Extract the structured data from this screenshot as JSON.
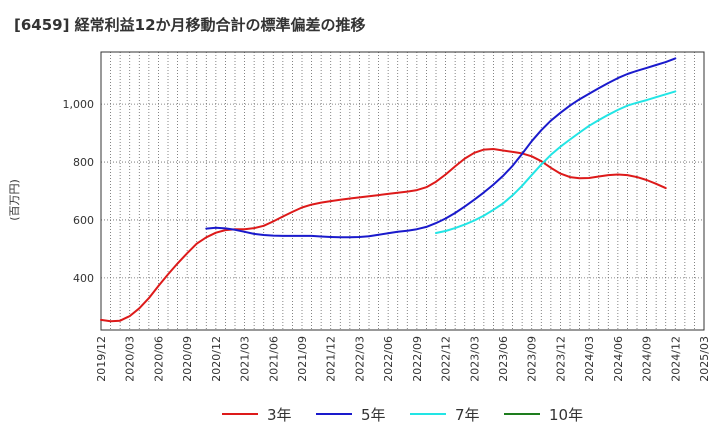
{
  "chart_data": {
    "type": "line",
    "title": "[6459]  経常利益12か月移動合計の標準偏差の推移",
    "ylabel": "(百万円)",
    "xlabel": "",
    "grid": true,
    "legend_placement": "bottom",
    "ylim": [
      220,
      1180
    ],
    "yticks": [
      400,
      600,
      800,
      1000
    ],
    "ytick_labels": [
      "400",
      "600",
      "800",
      "1,000"
    ],
    "xticks": [
      "2019/12",
      "2020/03",
      "2020/06",
      "2020/09",
      "2020/12",
      "2021/03",
      "2021/06",
      "2021/09",
      "2021/12",
      "2022/03",
      "2022/06",
      "2022/09",
      "2022/12",
      "2023/03",
      "2023/06",
      "2023/09",
      "2023/12",
      "2024/03",
      "2024/06",
      "2024/09",
      "2024/12",
      "2025/03"
    ],
    "series": [
      {
        "name": "3年",
        "color": "#dd1a1a",
        "points": [
          [
            "2019/12",
            255
          ],
          [
            "2020/01",
            250
          ],
          [
            "2020/02",
            252
          ],
          [
            "2020/03",
            268
          ],
          [
            "2020/04",
            295
          ],
          [
            "2020/05",
            330
          ],
          [
            "2020/06",
            372
          ],
          [
            "2020/07",
            412
          ],
          [
            "2020/08",
            450
          ],
          [
            "2020/09",
            485
          ],
          [
            "2020/10",
            518
          ],
          [
            "2020/11",
            540
          ],
          [
            "2020/12",
            556
          ],
          [
            "2021/01",
            565
          ],
          [
            "2021/02",
            568
          ],
          [
            "2021/03",
            568
          ],
          [
            "2021/04",
            572
          ],
          [
            "2021/05",
            580
          ],
          [
            "2021/06",
            595
          ],
          [
            "2021/07",
            612
          ],
          [
            "2021/08",
            628
          ],
          [
            "2021/09",
            643
          ],
          [
            "2021/10",
            653
          ],
          [
            "2021/11",
            660
          ],
          [
            "2021/12",
            665
          ],
          [
            "2022/01",
            670
          ],
          [
            "2022/02",
            674
          ],
          [
            "2022/03",
            678
          ],
          [
            "2022/04",
            682
          ],
          [
            "2022/05",
            686
          ],
          [
            "2022/06",
            690
          ],
          [
            "2022/07",
            694
          ],
          [
            "2022/08",
            698
          ],
          [
            "2022/09",
            703
          ],
          [
            "2022/10",
            713
          ],
          [
            "2022/11",
            732
          ],
          [
            "2022/12",
            757
          ],
          [
            "2023/01",
            785
          ],
          [
            "2023/02",
            812
          ],
          [
            "2023/03",
            832
          ],
          [
            "2023/04",
            843
          ],
          [
            "2023/05",
            845
          ],
          [
            "2023/06",
            840
          ],
          [
            "2023/07",
            835
          ],
          [
            "2023/08",
            830
          ],
          [
            "2023/09",
            820
          ],
          [
            "2023/10",
            803
          ],
          [
            "2023/11",
            780
          ],
          [
            "2023/12",
            760
          ],
          [
            "2024/01",
            748
          ],
          [
            "2024/02",
            744
          ],
          [
            "2024/03",
            745
          ],
          [
            "2024/04",
            750
          ],
          [
            "2024/05",
            755
          ],
          [
            "2024/06",
            757
          ],
          [
            "2024/07",
            755
          ],
          [
            "2024/08",
            748
          ],
          [
            "2024/09",
            738
          ],
          [
            "2024/10",
            725
          ],
          [
            "2024/11",
            710
          ]
        ]
      },
      {
        "name": "5年",
        "color": "#1a1acc",
        "points": [
          [
            "2020/11",
            570
          ],
          [
            "2020/12",
            573
          ],
          [
            "2021/01",
            571
          ],
          [
            "2021/02",
            566
          ],
          [
            "2021/03",
            559
          ],
          [
            "2021/04",
            552
          ],
          [
            "2021/05",
            548
          ],
          [
            "2021/06",
            546
          ],
          [
            "2021/07",
            545
          ],
          [
            "2021/08",
            545
          ],
          [
            "2021/09",
            545
          ],
          [
            "2021/10",
            545
          ],
          [
            "2021/11",
            543
          ],
          [
            "2021/12",
            541
          ],
          [
            "2022/01",
            540
          ],
          [
            "2022/02",
            540
          ],
          [
            "2022/03",
            541
          ],
          [
            "2022/04",
            544
          ],
          [
            "2022/05",
            549
          ],
          [
            "2022/06",
            554
          ],
          [
            "2022/07",
            559
          ],
          [
            "2022/08",
            563
          ],
          [
            "2022/09",
            568
          ],
          [
            "2022/10",
            576
          ],
          [
            "2022/11",
            589
          ],
          [
            "2022/12",
            605
          ],
          [
            "2023/01",
            624
          ],
          [
            "2023/02",
            646
          ],
          [
            "2023/03",
            670
          ],
          [
            "2023/04",
            695
          ],
          [
            "2023/05",
            722
          ],
          [
            "2023/06",
            752
          ],
          [
            "2023/07",
            787
          ],
          [
            "2023/08",
            828
          ],
          [
            "2023/09",
            872
          ],
          [
            "2023/10",
            910
          ],
          [
            "2023/11",
            943
          ],
          [
            "2023/12",
            970
          ],
          [
            "2024/01",
            995
          ],
          [
            "2024/02",
            1017
          ],
          [
            "2024/03",
            1036
          ],
          [
            "2024/04",
            1055
          ],
          [
            "2024/05",
            1073
          ],
          [
            "2024/06",
            1090
          ],
          [
            "2024/07",
            1104
          ],
          [
            "2024/08",
            1115
          ],
          [
            "2024/09",
            1125
          ],
          [
            "2024/10",
            1135
          ],
          [
            "2024/11",
            1145
          ],
          [
            "2024/12",
            1158
          ]
        ]
      },
      {
        "name": "7年",
        "color": "#22e5e5",
        "points": [
          [
            "2022/11",
            555
          ],
          [
            "2022/12",
            562
          ],
          [
            "2023/01",
            572
          ],
          [
            "2023/02",
            584
          ],
          [
            "2023/03",
            598
          ],
          [
            "2023/04",
            615
          ],
          [
            "2023/05",
            635
          ],
          [
            "2023/06",
            657
          ],
          [
            "2023/07",
            685
          ],
          [
            "2023/08",
            718
          ],
          [
            "2023/09",
            755
          ],
          [
            "2023/10",
            792
          ],
          [
            "2023/11",
            825
          ],
          [
            "2023/12",
            853
          ],
          [
            "2024/01",
            878
          ],
          [
            "2024/02",
            902
          ],
          [
            "2024/03",
            925
          ],
          [
            "2024/04",
            945
          ],
          [
            "2024/05",
            963
          ],
          [
            "2024/06",
            980
          ],
          [
            "2024/07",
            995
          ],
          [
            "2024/08",
            1005
          ],
          [
            "2024/09",
            1014
          ],
          [
            "2024/10",
            1024
          ],
          [
            "2024/11",
            1034
          ],
          [
            "2024/12",
            1044
          ]
        ]
      },
      {
        "name": "10年",
        "color": "#1e7d1e",
        "points": []
      }
    ]
  }
}
